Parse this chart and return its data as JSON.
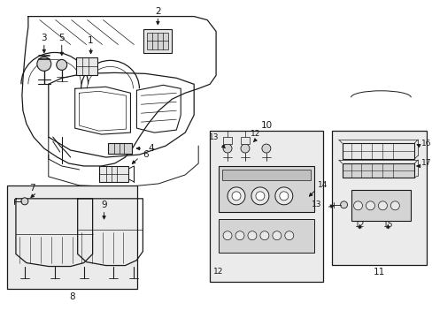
{
  "bg_color": "#ffffff",
  "lc": "#1a1a1a",
  "gray1": "#e8e8e8",
  "gray2": "#d4d4d4",
  "gray3": "#c0c0c0",
  "box_bg": "#ebebeb",
  "figsize": [
    4.89,
    3.6
  ],
  "dpi": 100,
  "xlim": [
    0,
    489
  ],
  "ylim": [
    0,
    360
  ]
}
